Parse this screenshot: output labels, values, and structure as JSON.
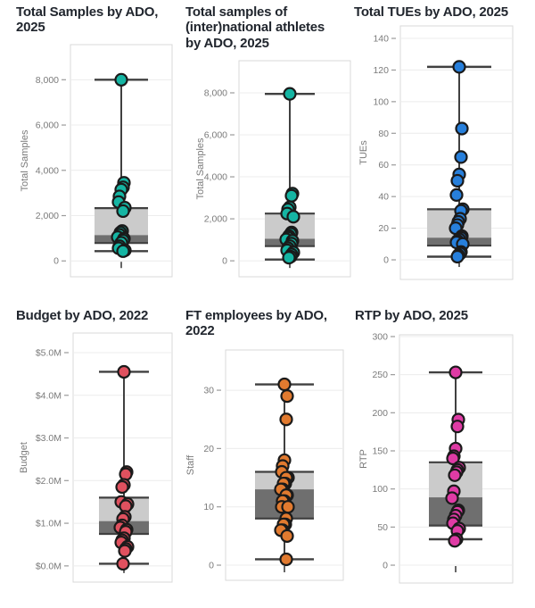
{
  "page": {
    "background": "#ffffff"
  },
  "theme": {
    "title_color": "#21262e",
    "axis_text_color": "#7a7a7a",
    "grid_color": "#ececec",
    "plot_border_color": "#d9d9d9",
    "plot_fill": "#ffffff",
    "box_light": "#cbcbcb",
    "box_dark": "#6f6f6f",
    "line_color": "#404040",
    "point_stroke": "#1a1a1a"
  },
  "chart_data": [
    {
      "type": "boxplot",
      "title": "Total Samples by ADO,\n2025",
      "ylabel": "Total Samples",
      "ylim": [
        -700,
        9550
      ],
      "grid": true,
      "yticks": [
        {
          "v": 0,
          "label": "0"
        },
        {
          "v": 2000,
          "label": "2,000"
        },
        {
          "v": 4000,
          "label": "4,000"
        },
        {
          "v": 6000,
          "label": "6,000"
        },
        {
          "v": 8000,
          "label": "8,000"
        }
      ],
      "box": {
        "q1": 790,
        "median": 1140,
        "q3": 2330,
        "whisker_low": 430,
        "whisker_high": 8000
      },
      "points": [
        8000,
        3450,
        3250,
        3150,
        2850,
        2600,
        2350,
        2200,
        1320,
        1250,
        1150,
        1050,
        980,
        900,
        800,
        650,
        560,
        470,
        430
      ],
      "point_color": "#15b5a3"
    },
    {
      "type": "boxplot",
      "title": "Total samples of\n(inter)national athletes\nby ADO, 2025",
      "ylabel": "Total Samples",
      "ylim": [
        -760,
        9530
      ],
      "grid": true,
      "yticks": [
        {
          "v": 0,
          "label": "0"
        },
        {
          "v": 2000,
          "label": "2,000"
        },
        {
          "v": 4000,
          "label": "4,000"
        },
        {
          "v": 6000,
          "label": "6,000"
        },
        {
          "v": 8000,
          "label": "8,000"
        }
      ],
      "box": {
        "q1": 700,
        "median": 1050,
        "q3": 2250,
        "whisker_low": 60,
        "whisker_high": 7950
      },
      "points": [
        7950,
        3200,
        3100,
        2550,
        2450,
        2250,
        2100,
        1350,
        1280,
        1180,
        1100,
        1020,
        950,
        820,
        700,
        600,
        500,
        400,
        300,
        200,
        150
      ],
      "point_color": "#15b5a3"
    },
    {
      "type": "boxplot",
      "title": "Total TUEs by ADO, 2025",
      "ylabel": "TUEs",
      "ylim": [
        -12.4,
        147.9
      ],
      "grid": true,
      "yticks": [
        {
          "v": 0,
          "label": "0"
        },
        {
          "v": 20,
          "label": "20"
        },
        {
          "v": 40,
          "label": "40"
        },
        {
          "v": 60,
          "label": "60"
        },
        {
          "v": 80,
          "label": "80"
        },
        {
          "v": 100,
          "label": "100"
        },
        {
          "v": 120,
          "label": "120"
        },
        {
          "v": 140,
          "label": "140"
        }
      ],
      "box": {
        "q1": 9,
        "median": 14,
        "q3": 32,
        "whisker_low": 2,
        "whisker_high": 122
      },
      "points": [
        122,
        83,
        65,
        54,
        50,
        41,
        32,
        31,
        26,
        24,
        22,
        20,
        15,
        14,
        13,
        12,
        11,
        10,
        5,
        4,
        3,
        2
      ],
      "point_color": "#277fdb"
    },
    {
      "type": "boxplot",
      "title": "Budget by ADO, 2022",
      "ylabel": "Budget",
      "ylim": [
        -0.38,
        5.46
      ],
      "grid": true,
      "yticks": [
        {
          "v": 0,
          "label": "$0.0M"
        },
        {
          "v": 1,
          "label": "$1.0M"
        },
        {
          "v": 2,
          "label": "$2.0M"
        },
        {
          "v": 3,
          "label": "$3.0M"
        },
        {
          "v": 4,
          "label": "$4.0M"
        },
        {
          "v": 5,
          "label": "$5.0M"
        }
      ],
      "box": {
        "q1": 0.75,
        "median": 1.05,
        "q3": 1.6,
        "whisker_low": 0.05,
        "whisker_high": 4.55
      },
      "points": [
        4.55,
        2.2,
        2.15,
        1.9,
        1.85,
        1.5,
        1.45,
        1.4,
        1.15,
        1.1,
        0.95,
        0.9,
        0.85,
        0.8,
        0.65,
        0.6,
        0.55,
        0.45,
        0.4,
        0.35,
        0.05
      ],
      "point_color": "#e0515f"
    },
    {
      "type": "boxplot",
      "title": "FT employees by ADO,\n2022",
      "ylabel": "Staff",
      "ylim": [
        -2.6,
        36.9
      ],
      "grid": true,
      "yticks": [
        {
          "v": 0,
          "label": "0"
        },
        {
          "v": 10,
          "label": "10"
        },
        {
          "v": 20,
          "label": "20"
        },
        {
          "v": 30,
          "label": "30"
        }
      ],
      "box": {
        "q1": 8,
        "median": 13,
        "q3": 16,
        "whisker_low": 1,
        "whisker_high": 31
      },
      "points": [
        31,
        29,
        25,
        18,
        17,
        16,
        15,
        15,
        14,
        14,
        13,
        13,
        12,
        12,
        11,
        11,
        10,
        10,
        8,
        7,
        7,
        6,
        6,
        5,
        1
      ],
      "point_color": "#e17a2f"
    },
    {
      "type": "boxplot",
      "title": "RTP by ADO, 2025",
      "ylabel": "RTP",
      "ylim": [
        -23.4,
        302.3
      ],
      "grid": true,
      "yticks": [
        {
          "v": 0,
          "label": "0"
        },
        {
          "v": 50,
          "label": "50"
        },
        {
          "v": 100,
          "label": "100"
        },
        {
          "v": 150,
          "label": "150"
        },
        {
          "v": 200,
          "label": "200"
        },
        {
          "v": 250,
          "label": "250"
        },
        {
          "v": 300,
          "label": "300"
        }
      ],
      "box": {
        "q1": 52,
        "median": 89,
        "q3": 135,
        "whisker_low": 34,
        "whisker_high": 253
      },
      "points": [
        253,
        191,
        182,
        153,
        143,
        140,
        128,
        125,
        122,
        118,
        97,
        88,
        72,
        70,
        65,
        60,
        55,
        48,
        45,
        34,
        32
      ],
      "point_color": "#df3ba5"
    }
  ]
}
